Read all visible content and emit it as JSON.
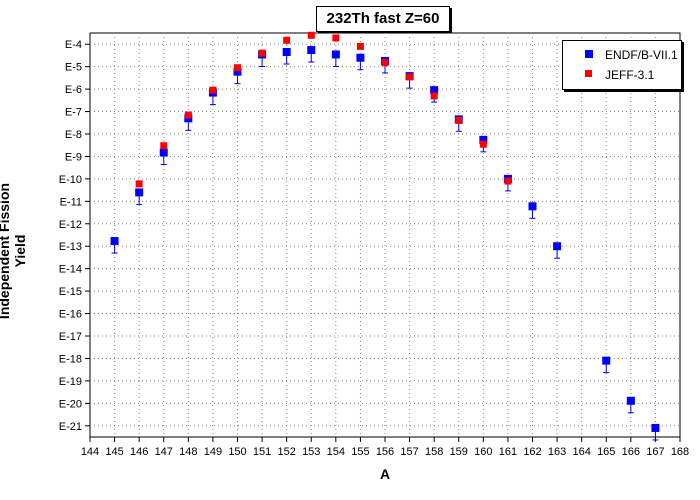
{
  "chart_data": {
    "type": "scatter",
    "title": "232Th fast Z=60",
    "xlabel": "A",
    "ylabel": "Independent Fission Yield",
    "xlim": [
      144,
      168
    ],
    "x_ticks": [
      "144",
      "145",
      "146",
      "147",
      "148",
      "149",
      "150",
      "151",
      "152",
      "153",
      "154",
      "155",
      "156",
      "157",
      "158",
      "159",
      "160",
      "161",
      "162",
      "163",
      "164",
      "165",
      "166",
      "167",
      "168"
    ],
    "ylim_exponent": [
      -21.5,
      -3.5
    ],
    "y_scale": "log",
    "y_ticks": [
      "E-4",
      "E-5",
      "E-6",
      "E-7",
      "E-8",
      "E-9",
      "E-10",
      "E-11",
      "E-12",
      "E-13",
      "E-14",
      "E-15",
      "E-16",
      "E-17",
      "E-18",
      "E-19",
      "E-20",
      "E-21"
    ],
    "grid": true,
    "legend_position": "top-right",
    "series": [
      {
        "name": "ENDF/B-VII.1",
        "color": "#0000ff",
        "marker": "square",
        "error_bars": true,
        "points": [
          {
            "x": 145,
            "y": 1.7e-13
          },
          {
            "x": 146,
            "y": 2.5e-11
          },
          {
            "x": 147,
            "y": 1.5e-09
          },
          {
            "x": 148,
            "y": 5e-08
          },
          {
            "x": 149,
            "y": 7e-07
          },
          {
            "x": 150,
            "y": 6e-06
          },
          {
            "x": 151,
            "y": 3.5e-05
          },
          {
            "x": 152,
            "y": 4.5e-05
          },
          {
            "x": 153,
            "y": 5.5e-05
          },
          {
            "x": 154,
            "y": 3.5e-05
          },
          {
            "x": 155,
            "y": 2.5e-05
          },
          {
            "x": 156,
            "y": 1.8e-05
          },
          {
            "x": 157,
            "y": 3.8e-06
          },
          {
            "x": 158,
            "y": 9e-07
          },
          {
            "x": 159,
            "y": 4.5e-08
          },
          {
            "x": 160,
            "y": 5.5e-09
          },
          {
            "x": 161,
            "y": 1e-10
          },
          {
            "x": 162,
            "y": 6e-12
          },
          {
            "x": 163,
            "y": 1e-13
          },
          {
            "x": 165,
            "y": 8e-19
          },
          {
            "x": 166,
            "y": 1.3e-20
          },
          {
            "x": 167,
            "y": 8e-22
          }
        ]
      },
      {
        "name": "JEFF-3.1",
        "color": "#ff0000",
        "marker": "square",
        "error_bars": false,
        "points": [
          {
            "x": 146,
            "y": 6e-11
          },
          {
            "x": 147,
            "y": 3e-09
          },
          {
            "x": 148,
            "y": 7e-08
          },
          {
            "x": 149,
            "y": 9e-07
          },
          {
            "x": 150,
            "y": 9e-06
          },
          {
            "x": 151,
            "y": 4e-05
          },
          {
            "x": 152,
            "y": 0.00015
          },
          {
            "x": 153,
            "y": 0.00025
          },
          {
            "x": 154,
            "y": 0.00019
          },
          {
            "x": 155,
            "y": 8e-05
          },
          {
            "x": 156,
            "y": 1.5e-05
          },
          {
            "x": 157,
            "y": 3.5e-06
          },
          {
            "x": 158,
            "y": 5e-07
          },
          {
            "x": 159,
            "y": 4e-08
          },
          {
            "x": 160,
            "y": 3.5e-09
          },
          {
            "x": 161,
            "y": 8e-11
          }
        ]
      }
    ]
  }
}
